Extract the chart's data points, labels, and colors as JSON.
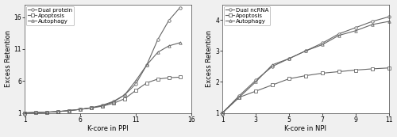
{
  "ppi": {
    "xlabel": "K-core in PPI",
    "ylabel": "Excess Retention",
    "xlim": [
      1,
      16
    ],
    "ylim": [
      1,
      18
    ],
    "xticks": [
      1,
      6,
      11,
      16
    ],
    "yticks": [
      1,
      6,
      11,
      16
    ],
    "dual_protein": {
      "x": [
        1,
        2,
        3,
        4,
        5,
        6,
        7,
        8,
        9,
        10,
        11,
        12,
        13,
        14,
        15
      ],
      "y": [
        1.0,
        1.05,
        1.1,
        1.2,
        1.35,
        1.55,
        1.8,
        2.2,
        2.8,
        3.8,
        5.5,
        8.5,
        12.5,
        15.5,
        17.5
      ],
      "label": "Dual protein",
      "marker": "o"
    },
    "apoptosis": {
      "x": [
        1,
        2,
        3,
        4,
        5,
        6,
        7,
        8,
        9,
        10,
        11,
        12,
        13,
        14,
        15
      ],
      "y": [
        1.0,
        1.05,
        1.1,
        1.2,
        1.35,
        1.55,
        1.75,
        2.05,
        2.5,
        3.2,
        4.5,
        5.7,
        6.3,
        6.5,
        6.6
      ],
      "label": "Apoptosis",
      "marker": "s"
    },
    "autophagy": {
      "x": [
        1,
        2,
        3,
        4,
        5,
        6,
        7,
        8,
        9,
        10,
        11,
        12,
        13,
        14,
        15
      ],
      "y": [
        1.0,
        1.05,
        1.1,
        1.2,
        1.35,
        1.55,
        1.8,
        2.1,
        2.7,
        3.8,
        6.0,
        8.5,
        10.5,
        11.5,
        12.0
      ],
      "label": "Autophagy",
      "marker": "^"
    }
  },
  "npi": {
    "xlabel": "K-core in NPI",
    "ylabel": "Excess Retention",
    "xlim": [
      1,
      11
    ],
    "ylim": [
      1,
      4.5
    ],
    "xticks": [
      1,
      3,
      5,
      7,
      9,
      11
    ],
    "yticks": [
      1,
      2,
      3,
      4
    ],
    "dual_ncrna": {
      "x": [
        1,
        2,
        3,
        4,
        5,
        6,
        7,
        8,
        9,
        10,
        11
      ],
      "y": [
        1.0,
        1.55,
        2.05,
        2.5,
        2.75,
        3.0,
        3.25,
        3.55,
        3.75,
        3.95,
        4.1
      ],
      "label": "Dual ncRNA",
      "marker": "o"
    },
    "apoptosis": {
      "x": [
        1,
        2,
        3,
        4,
        5,
        6,
        7,
        8,
        9,
        10,
        11
      ],
      "y": [
        1.0,
        1.5,
        1.7,
        1.9,
        2.1,
        2.2,
        2.28,
        2.33,
        2.38,
        2.42,
        2.45
      ],
      "label": "Apoptosis",
      "marker": "s"
    },
    "autophagy": {
      "x": [
        1,
        2,
        3,
        4,
        5,
        6,
        7,
        8,
        9,
        10,
        11
      ],
      "y": [
        1.0,
        1.5,
        2.0,
        2.55,
        2.75,
        3.0,
        3.2,
        3.5,
        3.65,
        3.85,
        3.95
      ],
      "label": "Autophagy",
      "marker": "^"
    }
  },
  "line_color": "#666666",
  "marker_size": 2.5,
  "linewidth": 0.8,
  "legend_fontsize": 5.0,
  "axis_label_fontsize": 6.0,
  "tick_fontsize": 5.5,
  "bg_color": "#ffffff",
  "fig_bg_color": "#f0f0f0"
}
